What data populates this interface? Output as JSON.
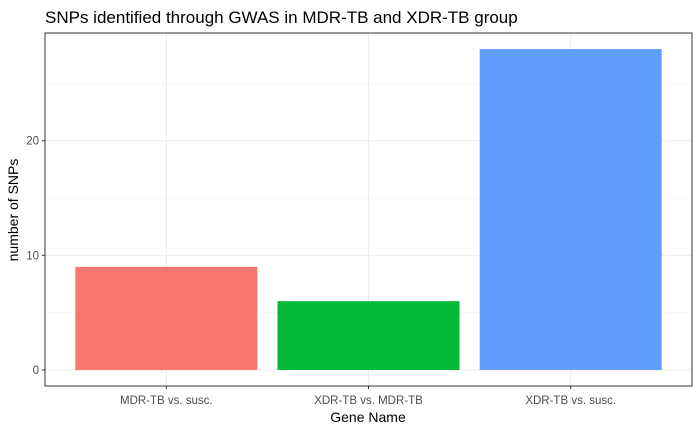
{
  "chart_data": {
    "type": "bar",
    "title": "SNPs identified through GWAS in MDR-TB and XDR-TB group",
    "xlabel": "Gene Name",
    "ylabel": "number of SNPs",
    "categories": [
      "MDR-TB vs. susc.",
      "XDR-TB vs. MDR-TB",
      "XDR-TB vs. susc."
    ],
    "values": [
      9,
      6,
      28
    ],
    "colors": [
      "#F8766D",
      "#00BA38",
      "#619CFF"
    ],
    "ylim": [
      -1.4,
      29.4
    ],
    "yticks": [
      0,
      10,
      20
    ],
    "ytick_labels": [
      "0",
      "10",
      "20"
    ],
    "grid": true,
    "legend": "none"
  }
}
